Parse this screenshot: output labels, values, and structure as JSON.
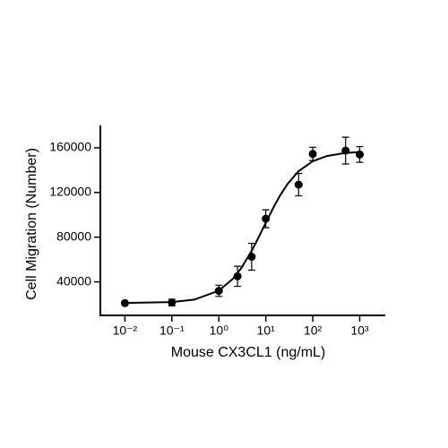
{
  "chart_data": {
    "type": "scatter",
    "xlabel": "Mouse CX3CL1 (ng/mL)",
    "ylabel": "Cell Migration (Number)",
    "xscale": "log",
    "xlim": [
      0.003,
      3500
    ],
    "xticks": [
      {
        "value": 0.01,
        "label": "10⁻²"
      },
      {
        "value": 0.1,
        "label": "10⁻¹"
      },
      {
        "value": 1,
        "label": "10⁰"
      },
      {
        "value": 10,
        "label": "10¹"
      },
      {
        "value": 100,
        "label": "10²"
      },
      {
        "value": 1000,
        "label": "10³"
      }
    ],
    "ylim": [
      10000,
      180000
    ],
    "yticks": [
      40000,
      80000,
      120000,
      160000
    ],
    "color": "#000000",
    "x": [
      0.01,
      0.1,
      1,
      2.5,
      5,
      10,
      50,
      100,
      500,
      1000
    ],
    "values": [
      21000,
      21500,
      32000,
      45000,
      62500,
      96500,
      127000,
      154500,
      157500,
      154000
    ],
    "errors": [
      1000,
      3000,
      5000,
      9000,
      12000,
      8000,
      10000,
      6000,
      12000,
      7000
    ],
    "curve": {
      "x": [
        0.01,
        0.1,
        0.3,
        1,
        2,
        3,
        5,
        7,
        10,
        15,
        20,
        30,
        50,
        100,
        200,
        500,
        1000
      ],
      "values": [
        21080,
        21960,
        24090,
        32150,
        42800,
        52260,
        67760,
        79670,
        92940,
        107620,
        117110,
        128420,
        139060,
        148020,
        152670,
        155390,
        156240
      ]
    }
  }
}
